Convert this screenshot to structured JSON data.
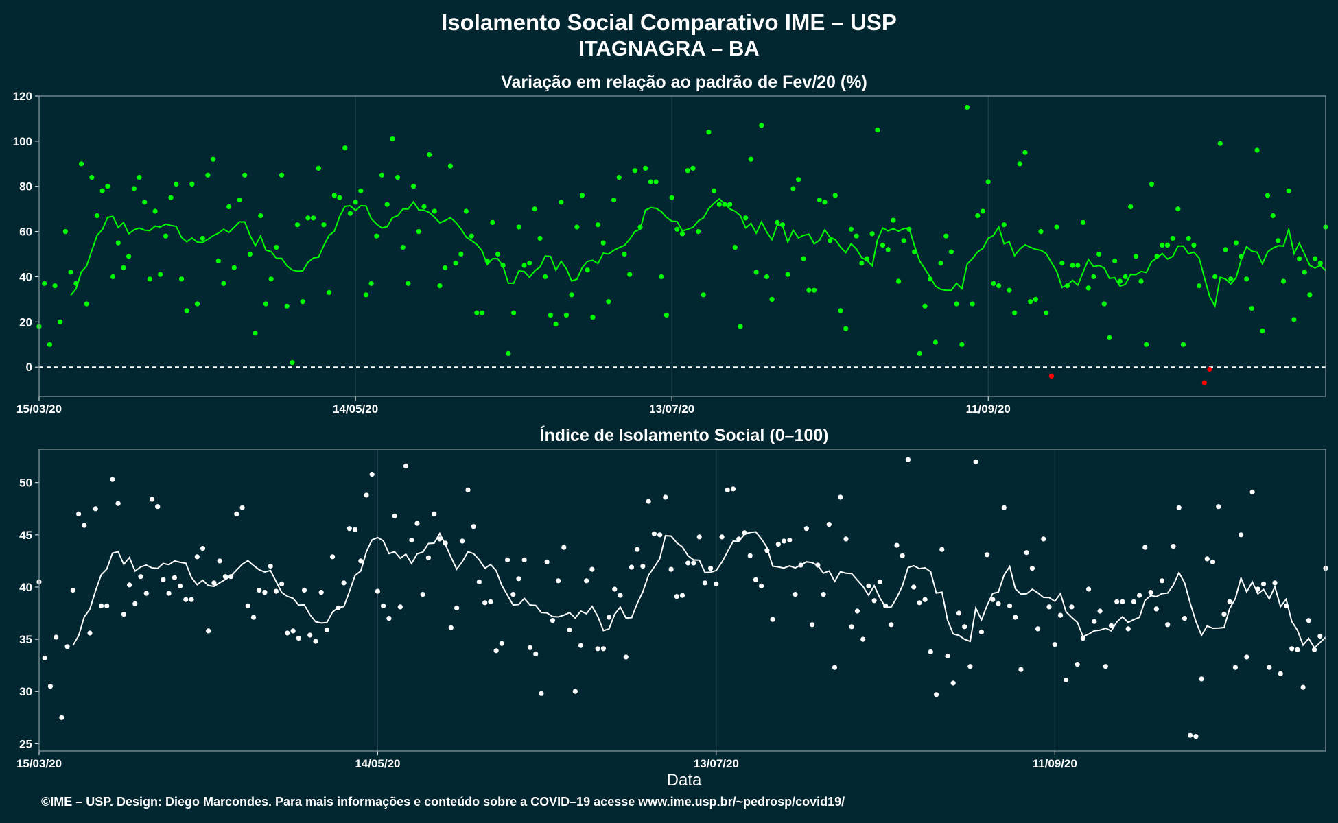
{
  "page": {
    "title_line1": "Isolamento Social Comparativo IME – USP",
    "title_line2": "ITAGNAGRA – BA",
    "footer": "©IME – USP. Design: Diego Marcondes. Para mais informações e conteúdo sobre a COVID–19 acesse www.ime.usp.br/~pedrosp/covid19/",
    "colors": {
      "background": "#022731",
      "panel_border": "#8a9ba2",
      "grid": "#244550",
      "variation_points": "#00ff00",
      "variation_negative": "#ff0000",
      "index_points": "#ffffff"
    }
  },
  "chart_data": [
    {
      "type": "scatter",
      "title": "Variação em relação ao padrão de Fev/20 (%)",
      "xlabel": "",
      "ylabel": "",
      "x_start": "2020-03-15",
      "x_ticks": [
        "15/03/20",
        "14/05/20",
        "13/07/20",
        "11/09/20"
      ],
      "yticks": [
        0,
        20,
        40,
        60,
        80,
        100,
        120
      ],
      "ylim": [
        -13,
        120
      ],
      "reference_line": 0,
      "grid": true,
      "series": [
        {
          "values": [
            18,
            37,
            10,
            36,
            20,
            60,
            42,
            37,
            90,
            28,
            84,
            67,
            78,
            80,
            40,
            55,
            44,
            49,
            79,
            84,
            73,
            39,
            69,
            41,
            58,
            75,
            81,
            39,
            25,
            81,
            28,
            57,
            85,
            92,
            47,
            37,
            71,
            44,
            74,
            85,
            50,
            15,
            67,
            28,
            39,
            53,
            85,
            27,
            2,
            63,
            29,
            66,
            66,
            88,
            63,
            33,
            76,
            75,
            97,
            68,
            73,
            78,
            32,
            37,
            58,
            85,
            72,
            101,
            84,
            53,
            37,
            80,
            60,
            71,
            94,
            69,
            36,
            44,
            89,
            46,
            50,
            69,
            58,
            24,
            24,
            47,
            64,
            50,
            45,
            6,
            24,
            62,
            45,
            46,
            70,
            57,
            40,
            23,
            19,
            73,
            23,
            32,
            62,
            76,
            43,
            22,
            63,
            55,
            29,
            74,
            84,
            50,
            41,
            87,
            62,
            88,
            82,
            82,
            40,
            23,
            75,
            61,
            59,
            87,
            88,
            60,
            32,
            104,
            78,
            72,
            72,
            72,
            53,
            18,
            66,
            92,
            42,
            107,
            40,
            30,
            64,
            63,
            41,
            79,
            83,
            48,
            34,
            34,
            74,
            73,
            56,
            76,
            25,
            17,
            61,
            58,
            46,
            48,
            59,
            105,
            54,
            52,
            65,
            38,
            56,
            61,
            51,
            6,
            27,
            39,
            11,
            46,
            58,
            51,
            28,
            10,
            115,
            28,
            67,
            69,
            82,
            37,
            36,
            63,
            34,
            24,
            90,
            95,
            29,
            30,
            60,
            24,
            -4,
            62,
            46,
            36,
            45,
            45,
            64,
            35,
            40,
            50,
            28,
            13,
            47,
            38,
            40,
            71,
            49,
            38,
            10,
            81,
            49,
            54,
            54,
            57,
            70,
            10,
            57,
            54,
            36,
            -7,
            -1,
            40,
            99,
            52,
            39,
            55,
            49,
            39,
            26,
            96,
            16,
            76,
            67,
            56,
            38,
            78,
            21,
            48,
            42,
            32,
            48,
            46,
            62
          ],
          "moving_average": "line"
        }
      ]
    },
    {
      "type": "scatter",
      "title": "Índice de Isolamento Social (0–100)",
      "xlabel": "Data",
      "ylabel": "",
      "x_start": "2020-03-15",
      "x_ticks": [
        "15/03/20",
        "14/05/20",
        "13/07/20",
        "11/09/20"
      ],
      "yticks": [
        25,
        30,
        35,
        40,
        45,
        50
      ],
      "ylim": [
        24.3,
        53.2
      ],
      "grid": true,
      "series": [
        {
          "values": [
            40.5,
            33.2,
            30.5,
            35.2,
            27.5,
            34.3,
            39.7,
            47.0,
            45.9,
            35.6,
            47.5,
            38.2,
            38.2,
            50.3,
            48.0,
            37.4,
            40.2,
            38.4,
            41.0,
            39.4,
            48.4,
            47.7,
            40.7,
            39.4,
            40.9,
            40.1,
            38.8,
            38.8,
            42.9,
            43.7,
            35.8,
            40.4,
            42.5,
            41.0,
            41.0,
            47.0,
            47.6,
            38.2,
            37.1,
            39.7,
            39.5,
            42.0,
            39.6,
            40.3,
            35.6,
            35.8,
            35.1,
            39.7,
            35.4,
            34.8,
            39.5,
            35.9,
            42.9,
            38.0,
            40.4,
            45.6,
            45.5,
            42.5,
            48.8,
            50.8,
            39.6,
            38.2,
            37.0,
            46.8,
            38.1,
            51.6,
            44.5,
            46.1,
            39.3,
            42.8,
            47.0,
            44.6,
            44.2,
            36.1,
            38.0,
            44.4,
            49.3,
            45.8,
            40.5,
            38.5,
            38.6,
            33.9,
            34.6,
            42.6,
            39.3,
            40.8,
            42.6,
            34.2,
            33.6,
            29.8,
            42.4,
            36.8,
            40.6,
            43.8,
            35.9,
            30.0,
            34.4,
            40.6,
            41.7,
            34.1,
            34.1,
            37.1,
            39.8,
            39.2,
            33.3,
            41.9,
            43.6,
            42.0,
            48.2,
            45.1,
            45.0,
            48.6,
            41.7,
            39.1,
            39.2,
            42.3,
            42.3,
            44.8,
            40.4,
            41.8,
            40.3,
            44.8,
            49.3,
            49.4,
            44.6,
            45.2,
            43.0,
            40.7,
            40.1,
            43.5,
            36.9,
            44.1,
            44.4,
            44.5,
            39.3,
            42.1,
            45.6,
            36.4,
            42.1,
            39.3,
            46.0,
            32.3,
            48.6,
            44.6,
            36.2,
            37.7,
            35.0,
            40.1,
            38.7,
            40.5,
            38.2,
            36.4,
            44.0,
            43.0,
            52.2,
            40.0,
            38.5,
            38.8,
            33.8,
            29.7,
            43.6,
            33.4,
            30.8,
            37.5,
            36.2,
            32.4,
            52.0,
            35.7,
            43.1,
            38.8,
            38.4,
            47.6,
            38.2,
            37.1,
            32.1,
            43.3,
            41.8,
            36.0,
            44.6,
            38.1,
            34.5,
            37.3,
            31.1,
            38.1,
            32.6,
            35.1,
            39.8,
            36.7,
            37.7,
            32.4,
            36.3,
            38.6,
            38.6,
            36.0,
            38.6,
            39.2,
            43.8,
            39.5,
            37.9,
            40.6,
            36.4,
            43.9,
            47.6,
            37.0,
            25.8,
            25.7,
            31.2,
            42.7,
            42.4,
            47.7,
            37.4,
            38.6,
            32.3,
            45.0,
            33.3,
            49.1,
            39.8,
            40.3,
            32.3,
            40.4,
            31.7,
            38.2,
            34.1,
            34.0,
            30.4,
            36.8,
            34.0,
            35.3,
            41.8
          ],
          "moving_average": "line"
        }
      ]
    }
  ]
}
